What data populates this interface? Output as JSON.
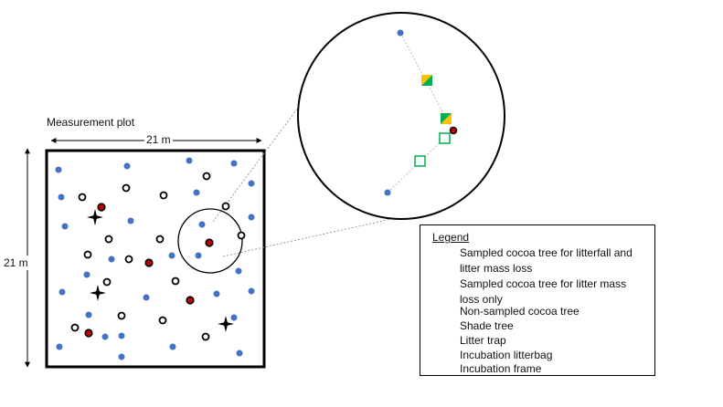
{
  "plot": {
    "title": "Measurement plot",
    "width_label": "21 m",
    "height_label": "21 m"
  },
  "colors": {
    "sampled_fill": "#c00000",
    "non_sampled": "#4472c4",
    "trap": "#00b050",
    "litterbag": "#00b050",
    "frame": "#ffc000"
  },
  "legend": {
    "title": "Legend",
    "items": [
      {
        "symbol": "sampled-litterfall-and-mass-loss",
        "lines": [
          "Sampled cocoa tree for litterfall and",
          "litter mass loss"
        ]
      },
      {
        "symbol": "sampled-mass-loss-only",
        "lines": [
          "Sampled cocoa tree for litter mass",
          "loss only"
        ]
      },
      {
        "symbol": "non-sampled",
        "lines": [
          "Non-sampled cocoa tree"
        ]
      },
      {
        "symbol": "shade-tree",
        "lines": [
          "Shade tree"
        ]
      },
      {
        "symbol": "litter-trap",
        "lines": [
          "Litter trap"
        ]
      },
      {
        "symbol": "incubation-litterbag",
        "lines": [
          "Incubation litterbag"
        ]
      },
      {
        "symbol": "incubation-frame",
        "lines": [
          "Incubation frame"
        ]
      }
    ]
  }
}
